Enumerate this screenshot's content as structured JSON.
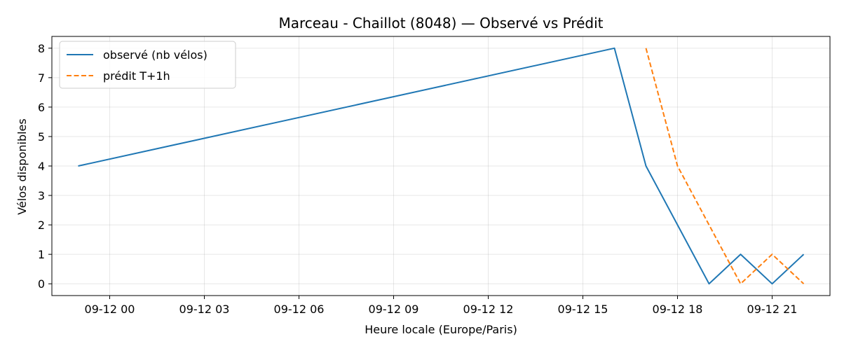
{
  "chart_data": {
    "type": "line",
    "title": "Marceau - Chaillot (8048) — Observé vs Prédit",
    "xlabel": "Heure locale (Europe/Paris)",
    "ylabel": "Vélos disponibles",
    "xlim": [
      "2024-09-11 22:10",
      "2024-09-12 22:50"
    ],
    "ylim": [
      -0.4,
      8.4
    ],
    "x_ticks": [
      {
        "t": "2024-09-12 00:00",
        "label": "09-12 00"
      },
      {
        "t": "2024-09-12 03:00",
        "label": "09-12 03"
      },
      {
        "t": "2024-09-12 06:00",
        "label": "09-12 06"
      },
      {
        "t": "2024-09-12 09:00",
        "label": "09-12 09"
      },
      {
        "t": "2024-09-12 12:00",
        "label": "09-12 12"
      },
      {
        "t": "2024-09-12 15:00",
        "label": "09-12 15"
      },
      {
        "t": "2024-09-12 18:00",
        "label": "09-12 18"
      },
      {
        "t": "2024-09-12 21:00",
        "label": "09-12 21"
      }
    ],
    "y_ticks": [
      0,
      1,
      2,
      3,
      4,
      5,
      6,
      7,
      8
    ],
    "grid": true,
    "legend": "top-left",
    "series": [
      {
        "name": "observé (nb vélos)",
        "color": "#1f77b4",
        "style": "solid",
        "points": [
          {
            "t": "2024-09-11 23:00",
            "y": 4
          },
          {
            "t": "2024-09-12 16:00",
            "y": 8
          },
          {
            "t": "2024-09-12 17:00",
            "y": 4
          },
          {
            "t": "2024-09-12 19:00",
            "y": 0
          },
          {
            "t": "2024-09-12 20:00",
            "y": 1
          },
          {
            "t": "2024-09-12 21:00",
            "y": 0
          },
          {
            "t": "2024-09-12 22:00",
            "y": 1
          }
        ]
      },
      {
        "name": "prédit T+1h",
        "color": "#ff7f0e",
        "style": "dashed",
        "points": [
          {
            "t": "2024-09-12 17:00",
            "y": 8
          },
          {
            "t": "2024-09-12 18:00",
            "y": 4
          },
          {
            "t": "2024-09-12 20:00",
            "y": 0
          },
          {
            "t": "2024-09-12 21:00",
            "y": 1
          },
          {
            "t": "2024-09-12 22:00",
            "y": 0
          }
        ]
      }
    ]
  }
}
